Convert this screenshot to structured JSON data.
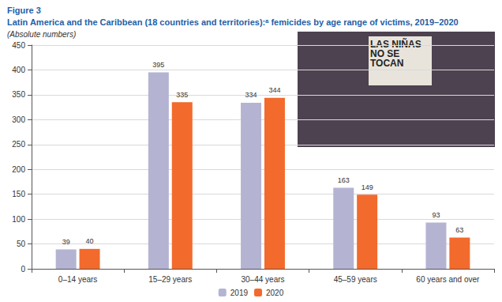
{
  "chart_data": {
    "type": "bar",
    "title": "Figure 3",
    "subtitle": "Latin America and the Caribbean (18 countries and territories):ᵃ femicides by age range of victims, 2019–2020",
    "y_label": "(Absolute numbers)",
    "annotations": [
      "LAS NIÑAS NO SE TOCAN"
    ],
    "categories": [
      "0–14 years",
      "15–29 years",
      "30–44 years",
      "45–59 years",
      "60 years and over"
    ],
    "series": [
      {
        "name": "2019",
        "color": "#b4b4d2",
        "values": [
          39,
          395,
          334,
          163,
          93
        ]
      },
      {
        "name": "2020",
        "color": "#f26a2c",
        "values": [
          40,
          335,
          344,
          149,
          63
        ]
      }
    ],
    "ylim": [
      0,
      450
    ],
    "yticks": [
      0,
      50,
      100,
      150,
      200,
      250,
      300,
      350,
      400,
      450
    ],
    "grid": true,
    "legend": "bottom",
    "data_labels": true
  }
}
